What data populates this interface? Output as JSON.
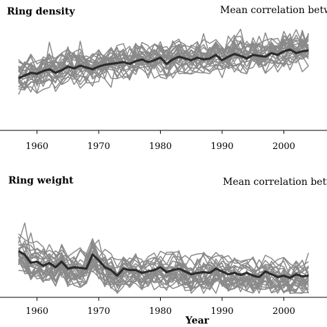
{
  "chart_data": [
    {
      "type": "line",
      "title": "Ring density",
      "subtitle": "Mean correlation betwe",
      "xlabel": "",
      "x_start": 1957,
      "x_end": 2004,
      "xlim": [
        1954,
        2007
      ],
      "xticks": [
        1960,
        1970,
        1980,
        1990,
        2000
      ],
      "ylim": [
        0,
        1
      ],
      "background_series_color": "#8a8a8a",
      "mean_series_color": "#2b2b2b",
      "mean_series": [
        0.42,
        0.45,
        0.48,
        0.47,
        0.5,
        0.52,
        0.48,
        0.51,
        0.55,
        0.53,
        0.56,
        0.54,
        0.52,
        0.55,
        0.57,
        0.58,
        0.59,
        0.6,
        0.58,
        0.61,
        0.63,
        0.6,
        0.62,
        0.65,
        0.58,
        0.63,
        0.66,
        0.64,
        0.62,
        0.65,
        0.63,
        0.64,
        0.68,
        0.62,
        0.66,
        0.69,
        0.67,
        0.64,
        0.68,
        0.67,
        0.66,
        0.7,
        0.68,
        0.72,
        0.74,
        0.7,
        0.72,
        0.73
      ]
    },
    {
      "type": "line",
      "title": "Ring weight",
      "subtitle": "Mean correlation betwe",
      "xlabel": "Year",
      "x_start": 1957,
      "x_end": 2004,
      "xlim": [
        1954,
        2007
      ],
      "xticks": [
        1960,
        1970,
        1980,
        1990,
        2000
      ],
      "ylim": [
        0,
        1
      ],
      "background_series_color": "#8a8a8a",
      "mean_series_color": "#2b2b2b",
      "mean_series": [
        0.55,
        0.5,
        0.38,
        0.4,
        0.34,
        0.38,
        0.32,
        0.4,
        0.3,
        0.32,
        0.31,
        0.3,
        0.5,
        0.42,
        0.32,
        0.28,
        0.2,
        0.3,
        0.28,
        0.28,
        0.24,
        0.26,
        0.28,
        0.32,
        0.25,
        0.28,
        0.3,
        0.26,
        0.22,
        0.24,
        0.25,
        0.24,
        0.3,
        0.26,
        0.22,
        0.24,
        0.21,
        0.24,
        0.2,
        0.18,
        0.26,
        0.22,
        0.18,
        0.2,
        0.17,
        0.22,
        0.19,
        0.2
      ]
    }
  ]
}
